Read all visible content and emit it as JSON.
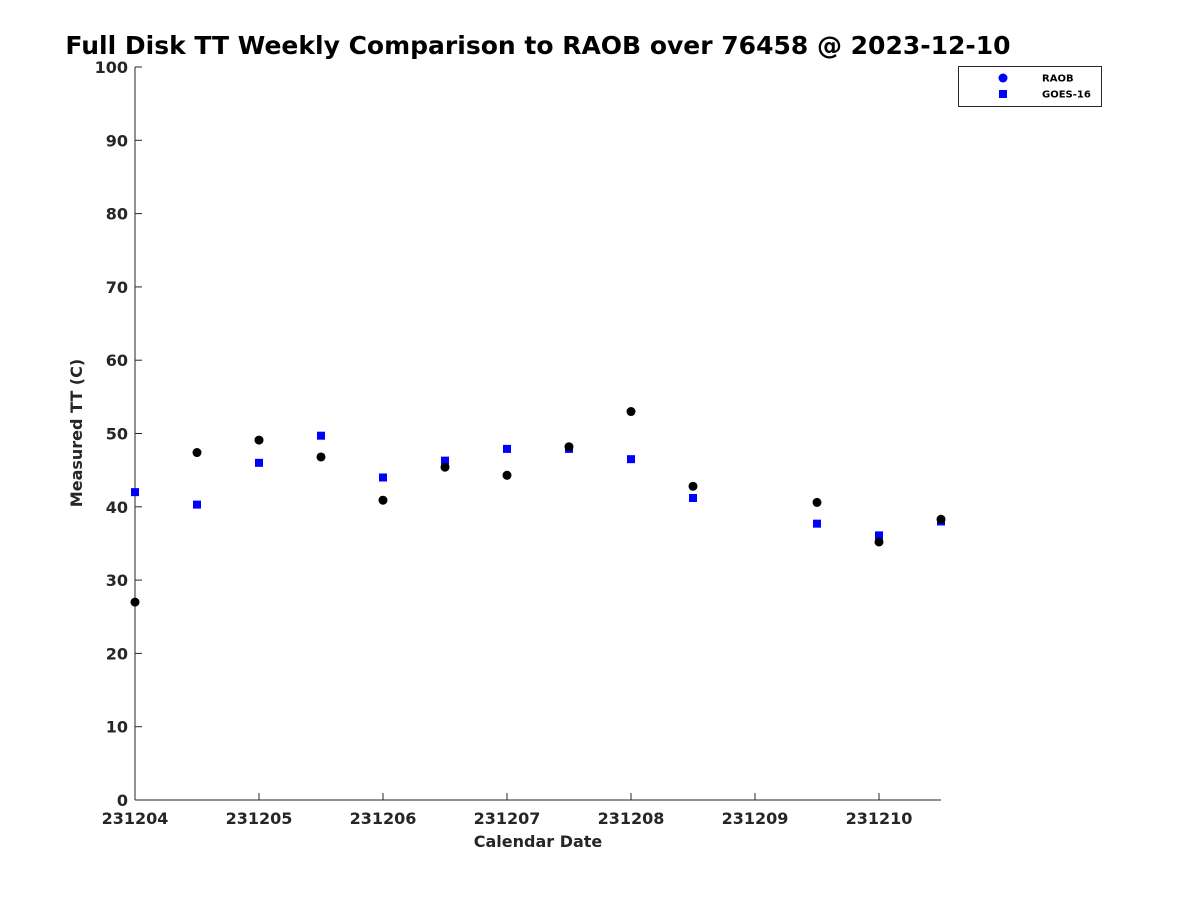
{
  "chart_data": {
    "type": "scatter",
    "title": "Full Disk TT Weekly Comparison to RAOB over 76458 @ 2023-12-10",
    "xlabel": "Calendar Date",
    "ylabel": "Measured TT (C)",
    "x_ticks": [
      "231204",
      "231205",
      "231206",
      "231207",
      "231208",
      "231209",
      "231210"
    ],
    "xlim": [
      "231204",
      "231210 12:00"
    ],
    "ylim": [
      0,
      100
    ],
    "y_ticks": [
      0,
      10,
      20,
      30,
      40,
      50,
      60,
      70,
      80,
      90,
      100
    ],
    "grid": false,
    "legend_position": "top-right",
    "series": [
      {
        "name": "RAOB",
        "marker": "circle",
        "color": "#000000",
        "legend_color": "#0000ff",
        "points": [
          {
            "x": "231204 00:00",
            "y": 27.0
          },
          {
            "x": "231204 12:00",
            "y": 47.4
          },
          {
            "x": "231205 00:00",
            "y": 49.1
          },
          {
            "x": "231205 12:00",
            "y": 46.8
          },
          {
            "x": "231206 00:00",
            "y": 40.9
          },
          {
            "x": "231206 12:00",
            "y": 45.4
          },
          {
            "x": "231207 00:00",
            "y": 44.3
          },
          {
            "x": "231207 12:00",
            "y": 48.2
          },
          {
            "x": "231208 00:00",
            "y": 53.0
          },
          {
            "x": "231208 12:00",
            "y": 42.8
          },
          {
            "x": "231209 12:00",
            "y": 40.6
          },
          {
            "x": "231210 00:00",
            "y": 35.2
          },
          {
            "x": "231210 12:00",
            "y": 38.3
          }
        ]
      },
      {
        "name": "GOES-16",
        "marker": "square",
        "color": "#0000ff",
        "points": [
          {
            "x": "231204 00:00",
            "y": 42.0
          },
          {
            "x": "231204 12:00",
            "y": 40.3
          },
          {
            "x": "231205 00:00",
            "y": 46.0
          },
          {
            "x": "231205 12:00",
            "y": 49.7
          },
          {
            "x": "231206 00:00",
            "y": 44.0
          },
          {
            "x": "231206 12:00",
            "y": 46.3
          },
          {
            "x": "231207 00:00",
            "y": 47.9
          },
          {
            "x": "231207 12:00",
            "y": 47.9
          },
          {
            "x": "231208 00:00",
            "y": 46.5
          },
          {
            "x": "231208 12:00",
            "y": 41.2
          },
          {
            "x": "231209 12:00",
            "y": 37.7
          },
          {
            "x": "231210 00:00",
            "y": 36.1
          },
          {
            "x": "231210 12:00",
            "y": 38.0
          }
        ]
      }
    ]
  }
}
